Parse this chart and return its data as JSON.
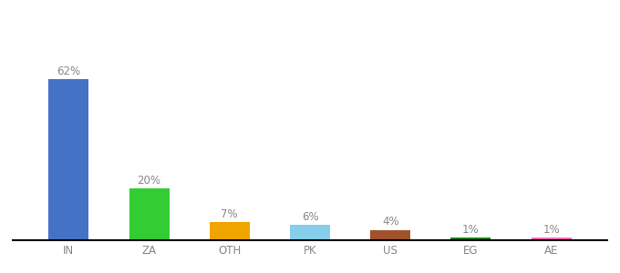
{
  "categories": [
    "IN",
    "ZA",
    "OTH",
    "PK",
    "US",
    "EG",
    "AE"
  ],
  "values": [
    62,
    20,
    7,
    6,
    4,
    1,
    1
  ],
  "labels": [
    "62%",
    "20%",
    "7%",
    "6%",
    "4%",
    "1%",
    "1%"
  ],
  "bar_colors": [
    "#4472C4",
    "#33CC33",
    "#F0A500",
    "#87CEEB",
    "#A0522D",
    "#1A7A1A",
    "#FF69B4"
  ],
  "background_color": "#ffffff",
  "label_fontsize": 8.5,
  "tick_fontsize": 8.5,
  "bar_width": 0.5
}
